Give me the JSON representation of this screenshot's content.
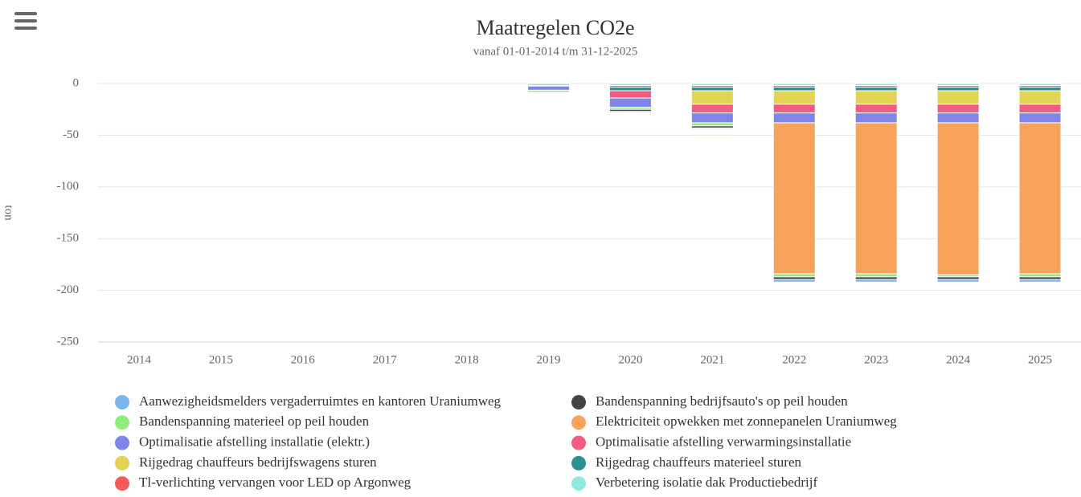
{
  "chart_data": {
    "type": "bar",
    "stacked": true,
    "title": "Maatregelen CO2e",
    "subtitle": "vanaf 01-01-2014 t/m 31-12-2025",
    "y_label": "ton",
    "categories": [
      "2014",
      "2015",
      "2016",
      "2017",
      "2018",
      "2019",
      "2020",
      "2021",
      "2022",
      "2023",
      "2024",
      "2025"
    ],
    "ylim": [
      -250,
      0
    ],
    "yticks": [
      0,
      -50,
      -100,
      -150,
      -200,
      -250
    ],
    "grid": true,
    "legend": "bottom",
    "series": [
      {
        "name": "Aanwezigheidsmelders vergaderruimtes en kantoren Uraniumweg",
        "color": "#7cb5ec",
        "values": [
          0,
          0,
          0,
          0,
          0,
          -0.5,
          -1,
          -1,
          -2.5,
          -2.5,
          -2.5,
          -2.5
        ]
      },
      {
        "name": "Bandenspanning bedrijfsauto's op peil houden",
        "color": "#434348",
        "values": [
          0,
          0,
          0,
          0,
          0,
          -0.5,
          -2,
          -2,
          -2.5,
          -2.5,
          -2.5,
          -2.5
        ]
      },
      {
        "name": "Bandenspanning materieel op peil houden",
        "color": "#90ed7d",
        "values": [
          0,
          0,
          0,
          0,
          0,
          -2,
          -2,
          -3,
          -3,
          -3,
          -2,
          -3
        ]
      },
      {
        "name": "Elektriciteit opwekken met zonnepanelen Uraniumweg",
        "color": "#f7a35c",
        "values": [
          0,
          0,
          0,
          0,
          0,
          0,
          0,
          0,
          -146,
          -146,
          -147,
          -146
        ]
      },
      {
        "name": "Optimalisatie afstelling installatie (elektr.)",
        "color": "#8085e9",
        "values": [
          0,
          0,
          0,
          0,
          0,
          -4,
          -9,
          -9.5,
          -9.5,
          -9.5,
          -9.5,
          -9.5
        ]
      },
      {
        "name": "Optimalisatie afstelling verwarmingsinstallatie",
        "color": "#f15c80",
        "values": [
          0,
          0,
          0,
          0,
          0,
          0,
          -7,
          -8.5,
          -8.5,
          -8.5,
          -8.5,
          -8.5
        ]
      },
      {
        "name": "Rijgedrag chauffeurs bedrijfswagens sturen",
        "color": "#e4d354",
        "values": [
          0,
          0,
          0,
          0,
          0,
          0,
          0,
          -13,
          -13,
          -13,
          -13,
          -13
        ]
      },
      {
        "name": "Rijgedrag chauffeurs materieel sturen",
        "color": "#2b908f",
        "values": [
          0,
          0,
          0,
          0,
          0,
          -0.5,
          -3.5,
          -3.5,
          -3.5,
          -3.5,
          -3.5,
          -3.5
        ]
      },
      {
        "name": "Tl-verlichting vervangen voor LED op Argonweg",
        "color": "#f45b5b",
        "values": [
          0,
          0,
          0,
          0,
          0,
          0,
          -1.5,
          -1.5,
          -1.5,
          -1.5,
          -1.5,
          -1.5
        ]
      },
      {
        "name": "Verbetering isolatie dak Productiebedrijf",
        "color": "#91e8e1",
        "values": [
          0,
          0,
          0,
          0,
          0,
          -2,
          -2,
          -2,
          -2,
          -2,
          -2,
          -2
        ]
      }
    ]
  }
}
